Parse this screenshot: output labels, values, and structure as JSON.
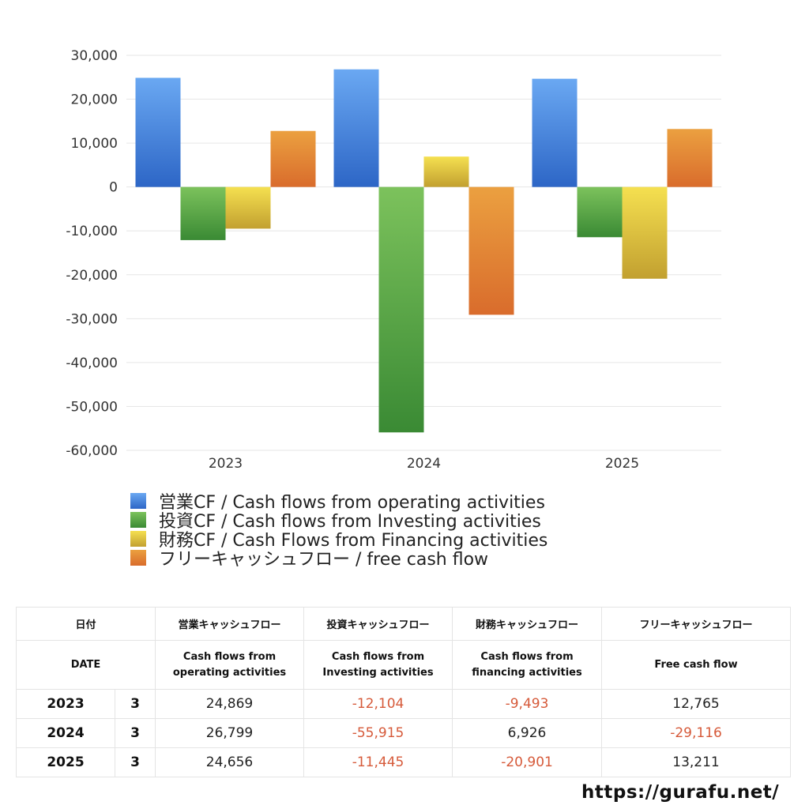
{
  "chart_data": {
    "type": "bar",
    "categories": [
      "2023",
      "2024",
      "2025"
    ],
    "ylim": [
      -60000,
      30000
    ],
    "yticks": [
      30000,
      20000,
      10000,
      0,
      -10000,
      -20000,
      -30000,
      -40000,
      -50000,
      -60000
    ],
    "ytick_labels": [
      "30,000",
      "20,000",
      "10,000",
      "0",
      "-10,000",
      "-20,000",
      "-30,000",
      "-40,000",
      "-50,000",
      "-60,000"
    ],
    "grid": true,
    "legend_position": "bottom",
    "series": [
      {
        "name": "営業CF / Cash flows from operating activities",
        "values": [
          24869,
          26799,
          24656
        ],
        "color_top": "#6aa8f2",
        "color_bottom": "#2d66c6"
      },
      {
        "name": "投資CF / Cash flows from Investing activities",
        "values": [
          -12104,
          -55915,
          -11445
        ],
        "color_top": "#7cc25c",
        "color_bottom": "#3a8a34"
      },
      {
        "name": "財務CF / Cash Flows from Financing activities",
        "values": [
          -9493,
          6926,
          -20901
        ],
        "color_top": "#f5e050",
        "color_bottom": "#c2a030"
      },
      {
        "name": "フリーキャッシュフロー / free cash flow",
        "values": [
          12765,
          -29116,
          13211
        ],
        "color_top": "#eba040",
        "color_bottom": "#d96c2c"
      }
    ]
  },
  "table": {
    "header_jp": [
      "日付",
      "営業キャッシュフロー",
      "投資キャッシュフロー",
      "財務キャッシュフロー",
      "フリーキャッシュフロー"
    ],
    "header_en": [
      "DATE",
      "Cash flows from operating activities",
      "Cash flows from Investing activities",
      "Cash flows from financing activities",
      "Free cash flow"
    ],
    "header_en_lines": [
      [
        "DATE"
      ],
      [
        "Cash flows from",
        "operating activities"
      ],
      [
        "Cash flows from",
        "Investing activities"
      ],
      [
        "Cash flows from",
        "financing activities"
      ],
      [
        "Free cash flow"
      ]
    ],
    "rows": [
      {
        "year": "2023",
        "month": "3",
        "values": [
          "24,869",
          "-12,104",
          "-9,493",
          "12,765"
        ]
      },
      {
        "year": "2024",
        "month": "3",
        "values": [
          "26,799",
          "-55,915",
          "6,926",
          "-29,116"
        ]
      },
      {
        "year": "2025",
        "month": "3",
        "values": [
          "24,656",
          "-11,445",
          "-20,901",
          "13,211"
        ]
      }
    ],
    "negative_color": "#d65a3a"
  },
  "footer": {
    "url": "https://gurafu.net/"
  }
}
